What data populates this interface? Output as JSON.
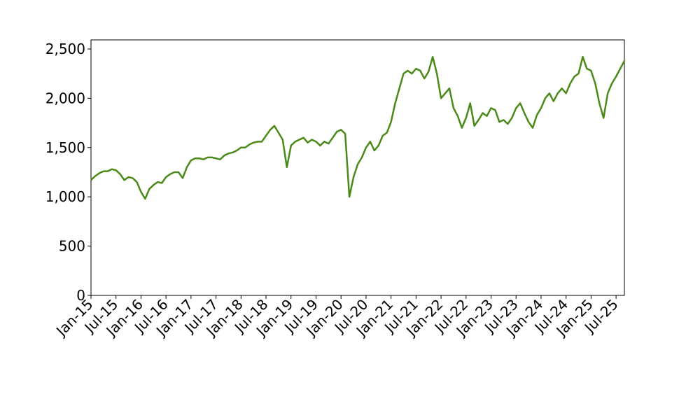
{
  "chart_data": {
    "type": "line",
    "color": "#4b8a19",
    "x": [
      "2015-01",
      "2015-02",
      "2015-03",
      "2015-04",
      "2015-05",
      "2015-06",
      "2015-07",
      "2015-08",
      "2015-09",
      "2015-10",
      "2015-11",
      "2015-12",
      "2016-01",
      "2016-02",
      "2016-03",
      "2016-04",
      "2016-05",
      "2016-06",
      "2016-07",
      "2016-08",
      "2016-09",
      "2016-10",
      "2016-11",
      "2016-12",
      "2017-01",
      "2017-02",
      "2017-03",
      "2017-04",
      "2017-05",
      "2017-06",
      "2017-07",
      "2017-08",
      "2017-09",
      "2017-10",
      "2017-11",
      "2017-12",
      "2018-01",
      "2018-02",
      "2018-03",
      "2018-04",
      "2018-05",
      "2018-06",
      "2018-07",
      "2018-08",
      "2018-09",
      "2018-10",
      "2018-11",
      "2018-12",
      "2019-01",
      "2019-02",
      "2019-03",
      "2019-04",
      "2019-05",
      "2019-06",
      "2019-07",
      "2019-08",
      "2019-09",
      "2019-10",
      "2019-11",
      "2019-12",
      "2020-01",
      "2020-02",
      "2020-03",
      "2020-04",
      "2020-05",
      "2020-06",
      "2020-07",
      "2020-08",
      "2020-09",
      "2020-10",
      "2020-11",
      "2020-12",
      "2021-01",
      "2021-02",
      "2021-03",
      "2021-04",
      "2021-05",
      "2021-06",
      "2021-07",
      "2021-08",
      "2021-09",
      "2021-10",
      "2021-11",
      "2021-12",
      "2022-01",
      "2022-02",
      "2022-03",
      "2022-04",
      "2022-05",
      "2022-06",
      "2022-07",
      "2022-08",
      "2022-09",
      "2022-10",
      "2022-11",
      "2022-12",
      "2023-01",
      "2023-02",
      "2023-03",
      "2023-04",
      "2023-05",
      "2023-06",
      "2023-07",
      "2023-08",
      "2023-09",
      "2023-10",
      "2023-11",
      "2023-12",
      "2024-01",
      "2024-02",
      "2024-03",
      "2024-04",
      "2024-05",
      "2024-06",
      "2024-07",
      "2024-08",
      "2024-09",
      "2024-10",
      "2024-11",
      "2024-12",
      "2025-01",
      "2025-02",
      "2025-03",
      "2025-04",
      "2025-05",
      "2025-06",
      "2025-07",
      "2025-08",
      "2025-09"
    ],
    "values": [
      1170,
      1210,
      1240,
      1260,
      1260,
      1280,
      1270,
      1230,
      1170,
      1200,
      1190,
      1150,
      1050,
      980,
      1080,
      1120,
      1150,
      1140,
      1200,
      1230,
      1250,
      1250,
      1190,
      1300,
      1370,
      1390,
      1390,
      1380,
      1400,
      1400,
      1390,
      1380,
      1420,
      1440,
      1450,
      1470,
      1500,
      1500,
      1530,
      1550,
      1560,
      1560,
      1620,
      1680,
      1720,
      1650,
      1580,
      1300,
      1520,
      1560,
      1580,
      1600,
      1550,
      1580,
      1560,
      1520,
      1560,
      1540,
      1600,
      1660,
      1680,
      1640,
      1000,
      1200,
      1330,
      1400,
      1500,
      1560,
      1470,
      1520,
      1620,
      1650,
      1760,
      1950,
      2100,
      2250,
      2280,
      2250,
      2300,
      2280,
      2200,
      2270,
      2420,
      2250,
      2000,
      2050,
      2100,
      1900,
      1820,
      1700,
      1800,
      1950,
      1720,
      1780,
      1850,
      1820,
      1900,
      1880,
      1760,
      1780,
      1740,
      1800,
      1900,
      1950,
      1850,
      1760,
      1700,
      1830,
      1900,
      2000,
      2050,
      1970,
      2050,
      2100,
      2050,
      2150,
      2220,
      2250,
      2420,
      2300,
      2280,
      2150,
      1950,
      1800,
      2050,
      2150,
      2220,
      2300,
      2380
    ],
    "xlim": [
      "2015-01",
      "2025-09"
    ],
    "xticks": [
      {
        "value": "2015-01",
        "label": "Jan-15"
      },
      {
        "value": "2015-07",
        "label": "Jul-15"
      },
      {
        "value": "2016-01",
        "label": "Jan-16"
      },
      {
        "value": "2016-07",
        "label": "Jul-16"
      },
      {
        "value": "2017-01",
        "label": "Jan-17"
      },
      {
        "value": "2017-07",
        "label": "Jul-17"
      },
      {
        "value": "2018-01",
        "label": "Jan-18"
      },
      {
        "value": "2018-07",
        "label": "Jul-18"
      },
      {
        "value": "2019-01",
        "label": "Jan-19"
      },
      {
        "value": "2019-07",
        "label": "Jul-19"
      },
      {
        "value": "2020-01",
        "label": "Jan-20"
      },
      {
        "value": "2020-07",
        "label": "Jul-20"
      },
      {
        "value": "2021-01",
        "label": "Jan-21"
      },
      {
        "value": "2021-07",
        "label": "Jul-21"
      },
      {
        "value": "2022-01",
        "label": "Jan-22"
      },
      {
        "value": "2022-07",
        "label": "Jul-22"
      },
      {
        "value": "2023-01",
        "label": "Jan-23"
      },
      {
        "value": "2023-07",
        "label": "Jul-23"
      },
      {
        "value": "2024-01",
        "label": "Jan-24"
      },
      {
        "value": "2024-07",
        "label": "Jul-24"
      },
      {
        "value": "2025-01",
        "label": "Jan-25"
      },
      {
        "value": "2025-07",
        "label": "Jul-25"
      }
    ],
    "ylim": [
      0,
      2592
    ],
    "yticks": [
      0,
      500,
      {
        "value": 1000,
        "label": "1,000"
      },
      {
        "value": 1500,
        "label": "1,500"
      },
      {
        "value": 2000,
        "label": "2,000"
      },
      {
        "value": 2500,
        "label": "2,500"
      }
    ],
    "grid": false
  }
}
